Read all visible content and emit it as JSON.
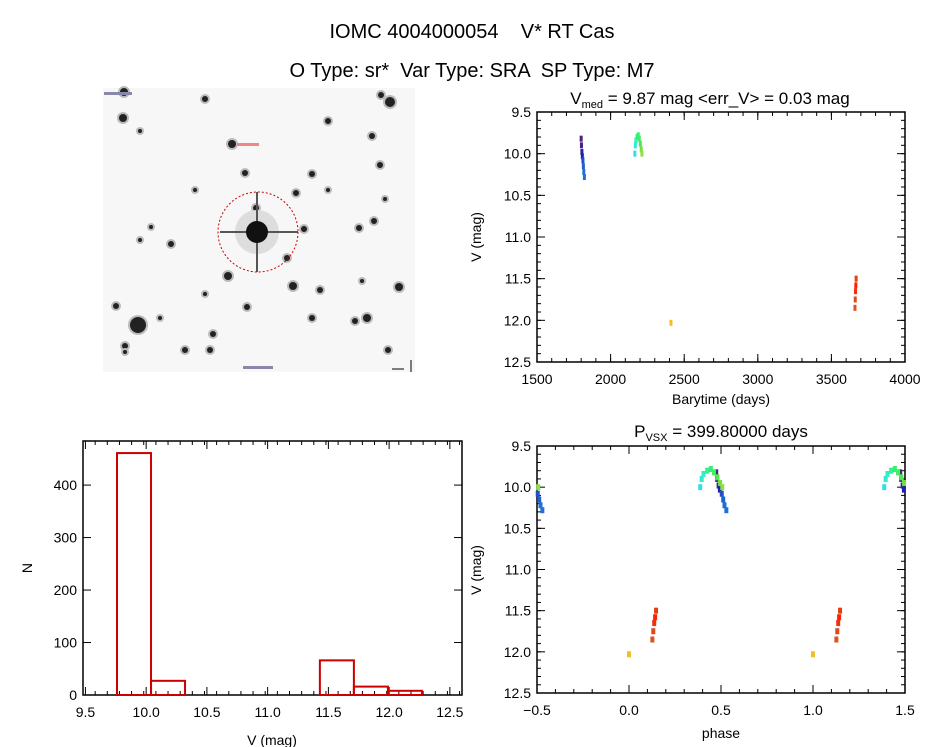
{
  "header": {
    "title": "IOMC 4004000054    V* RT Cas",
    "subtitle": "O Type: sr*  Var Type: SRA  SP Type: M7"
  },
  "colors": {
    "histogram": "#cc0000",
    "circle": "#cc0000",
    "axes": "#000000"
  },
  "chart_data": [
    {
      "type": "image",
      "name": "finder-chart",
      "annotations": [
        "dashed red circle around target star"
      ]
    },
    {
      "type": "scatter",
      "title_main": "V",
      "title_sub": "med",
      "title_rest": " = 9.87 mag <err_V> = 0.03 mag",
      "xlabel": "Barytime (days)",
      "ylabel": "V (mag)",
      "xlim": [
        1500,
        4000
      ],
      "ylim": [
        12.5,
        9.5
      ],
      "y_inverted": true,
      "xticks": [
        "1500",
        "2000",
        "2500",
        "3000",
        "3500",
        "4000"
      ],
      "yticks": [
        "9.5",
        "10.0",
        "10.5",
        "11.0",
        "11.5",
        "12.0",
        "12.5"
      ],
      "points": [
        {
          "t": 1800,
          "phase": 0.474,
          "v": 9.82,
          "color": "#502080"
        },
        {
          "t": 1802,
          "phase": 0.479,
          "v": 9.9,
          "color": "#482090"
        },
        {
          "t": 1805,
          "phase": 0.487,
          "v": 9.98,
          "color": "#3020a0"
        },
        {
          "t": 1808,
          "phase": 0.494,
          "v": 10.03,
          "color": "#2020b0"
        },
        {
          "t": 1812,
          "phase": 0.504,
          "v": 10.08,
          "color": "#2050c8"
        },
        {
          "t": 1815,
          "phase": 0.512,
          "v": 10.15,
          "color": "#2060d0"
        },
        {
          "t": 1818,
          "phase": 0.519,
          "v": 10.22,
          "color": "#2070d0"
        },
        {
          "t": 1822,
          "phase": 0.529,
          "v": 10.28,
          "color": "#2070d8"
        },
        {
          "t": 2165,
          "phase": 0.387,
          "v": 10.0,
          "color": "#30e0e8"
        },
        {
          "t": 2168,
          "phase": 0.395,
          "v": 9.9,
          "color": "#30e8d8"
        },
        {
          "t": 2172,
          "phase": 0.405,
          "v": 9.84,
          "color": "#30f0c0"
        },
        {
          "t": 2180,
          "phase": 0.425,
          "v": 9.8,
          "color": "#30f090"
        },
        {
          "t": 2188,
          "phase": 0.445,
          "v": 9.78,
          "color": "#30f070"
        },
        {
          "t": 2195,
          "phase": 0.462,
          "v": 9.82,
          "color": "#40f060"
        },
        {
          "t": 2202,
          "phase": 0.48,
          "v": 9.88,
          "color": "#50e850"
        },
        {
          "t": 2208,
          "phase": 0.495,
          "v": 9.95,
          "color": "#70e040"
        },
        {
          "t": 2213,
          "phase": 0.507,
          "v": 10.0,
          "color": "#90e040"
        },
        {
          "t": 2410,
          "phase": 0.0,
          "v": 12.03,
          "color": "#f0c020"
        },
        {
          "t": 3660,
          "phase": 0.127,
          "v": 11.85,
          "color": "#e05020"
        },
        {
          "t": 3662,
          "phase": 0.132,
          "v": 11.75,
          "color": "#e04818"
        },
        {
          "t": 3664,
          "phase": 0.137,
          "v": 11.65,
          "color": "#f03010"
        },
        {
          "t": 3666,
          "phase": 0.142,
          "v": 11.58,
          "color": "#ff2000"
        },
        {
          "t": 3668,
          "phase": 0.147,
          "v": 11.5,
          "color": "#e04010"
        }
      ]
    },
    {
      "type": "bar",
      "xlabel": "V (mag)",
      "ylabel": "N",
      "xlim": [
        9.48,
        12.6
      ],
      "ylim": [
        0,
        484
      ],
      "xticks": [
        "9.5",
        "10.0",
        "10.5",
        "11.0",
        "11.5",
        "12.0",
        "12.5"
      ],
      "yticks": [
        "0",
        "100",
        "200",
        "300",
        "400"
      ],
      "bins": [
        {
          "from": 9.76,
          "to": 10.04,
          "count": 461
        },
        {
          "from": 10.04,
          "to": 10.32,
          "count": 27
        },
        {
          "from": 10.32,
          "to": 11.43,
          "count": 0
        },
        {
          "from": 11.43,
          "to": 11.71,
          "count": 66
        },
        {
          "from": 11.71,
          "to": 11.99,
          "count": 16
        },
        {
          "from": 11.99,
          "to": 12.27,
          "count": 8
        }
      ]
    },
    {
      "type": "scatter",
      "title_main": "P",
      "title_sub": "VSX",
      "title_rest": " = 399.80000 days",
      "xlabel": "phase",
      "ylabel": "V (mag)",
      "xlim": [
        -0.5,
        1.5
      ],
      "ylim": [
        12.5,
        9.5
      ],
      "y_inverted": true,
      "xticks": [
        "-0.5",
        "0.0",
        "0.5",
        "1.0",
        "1.5"
      ],
      "yticks": [
        "9.5",
        "10.0",
        "10.5",
        "11.0",
        "11.5",
        "12.0",
        "12.5"
      ],
      "points_source": "same observations as light curve, folded on phase"
    }
  ]
}
